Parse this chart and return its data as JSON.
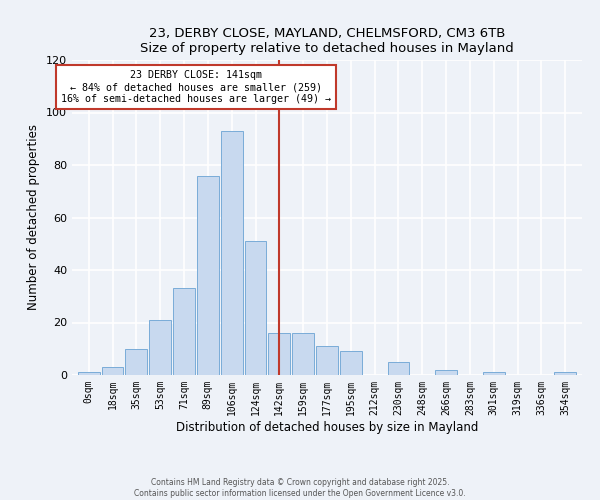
{
  "title": "23, DERBY CLOSE, MAYLAND, CHELMSFORD, CM3 6TB",
  "subtitle": "Size of property relative to detached houses in Mayland",
  "xlabel": "Distribution of detached houses by size in Mayland",
  "ylabel": "Number of detached properties",
  "bar_labels": [
    "0sqm",
    "18sqm",
    "35sqm",
    "53sqm",
    "71sqm",
    "89sqm",
    "106sqm",
    "124sqm",
    "142sqm",
    "159sqm",
    "177sqm",
    "195sqm",
    "212sqm",
    "230sqm",
    "248sqm",
    "266sqm",
    "283sqm",
    "301sqm",
    "319sqm",
    "336sqm",
    "354sqm"
  ],
  "bar_values": [
    1,
    3,
    10,
    21,
    33,
    76,
    93,
    51,
    16,
    16,
    11,
    9,
    0,
    5,
    0,
    2,
    0,
    1,
    0,
    0,
    1
  ],
  "bar_color": "#c8d9ef",
  "bar_edge_color": "#7aacd8",
  "vline_color": "#c0392b",
  "annotation_title": "23 DERBY CLOSE: 141sqm",
  "annotation_line1": "← 84% of detached houses are smaller (259)",
  "annotation_line2": "16% of semi-detached houses are larger (49) →",
  "annotation_box_color": "#ffffff",
  "annotation_box_edge": "#c0392b",
  "ylim": [
    0,
    120
  ],
  "yticks": [
    0,
    20,
    40,
    60,
    80,
    100,
    120
  ],
  "footnote1": "Contains HM Land Registry data © Crown copyright and database right 2025.",
  "footnote2": "Contains public sector information licensed under the Open Government Licence v3.0.",
  "bg_color": "#eef2f8",
  "grid_color": "#ffffff"
}
